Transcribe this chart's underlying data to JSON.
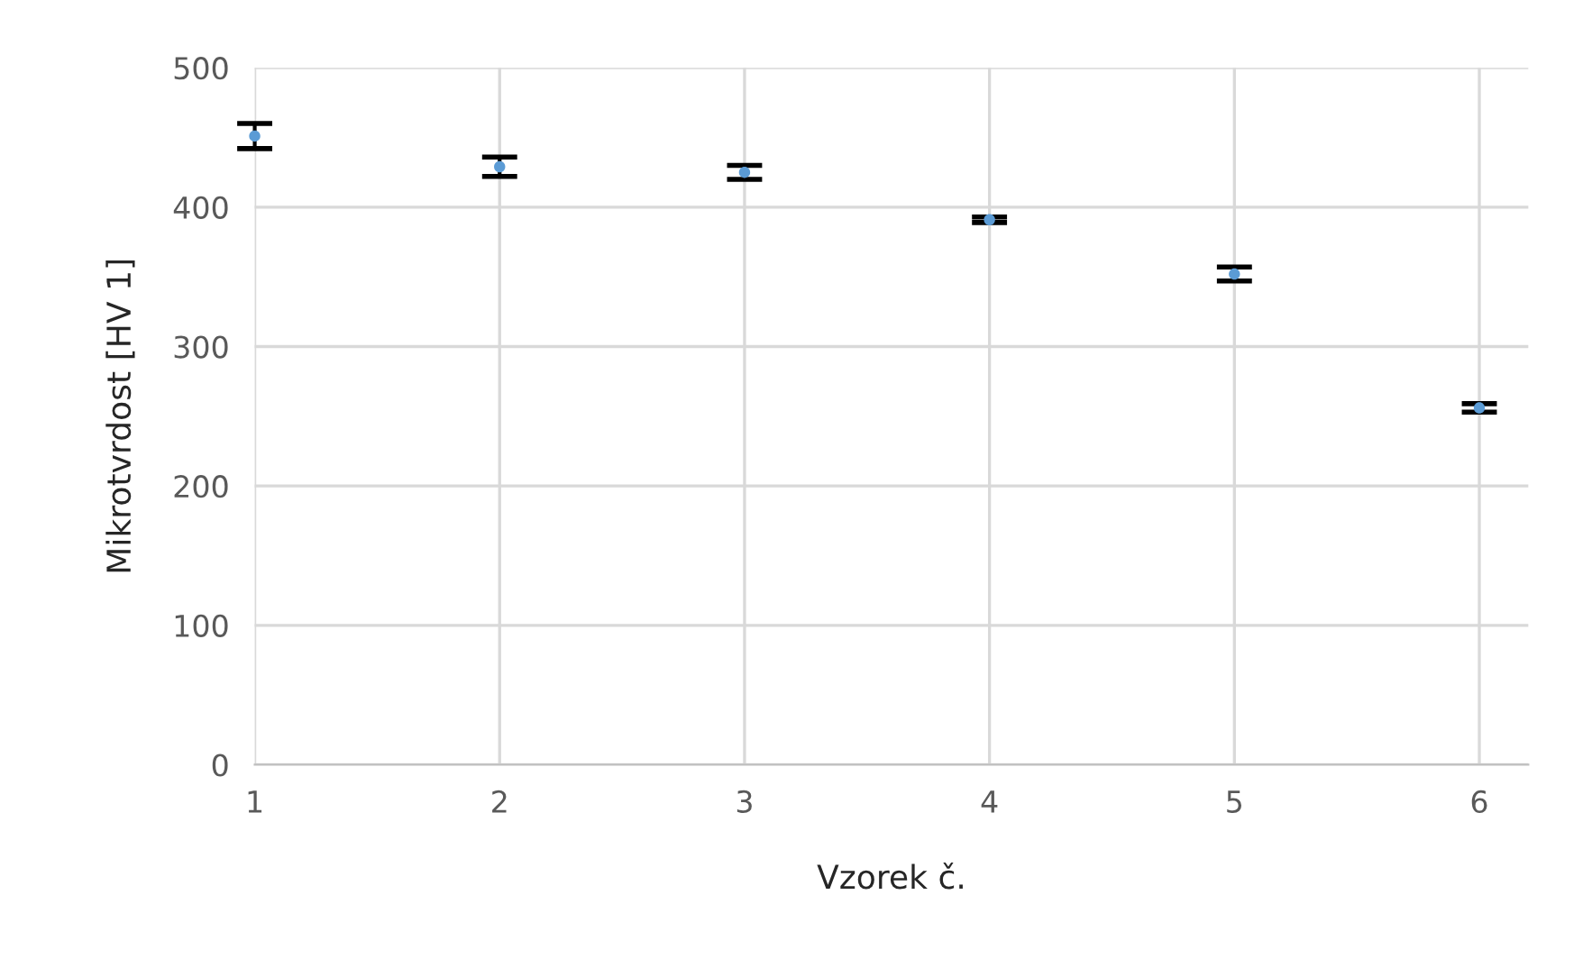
{
  "chart_data": {
    "type": "scatter",
    "xlabel": "Vzorek č.",
    "ylabel": "Mikrotvrdost [HV 1]",
    "x": [
      1,
      2,
      3,
      4,
      5,
      6
    ],
    "series": [
      {
        "color": "#5b9bd5",
        "values": [
          451,
          429,
          425,
          391,
          352,
          256
        ],
        "errors": [
          9,
          7,
          5,
          2,
          5,
          3
        ]
      }
    ],
    "xlim": [
      1,
      6.2
    ],
    "xticks": [
      1,
      2,
      3,
      4,
      5,
      6
    ],
    "ylim": [
      0,
      500
    ],
    "yticks": [
      0,
      100,
      200,
      300,
      400,
      500
    ],
    "grid": true,
    "marker": "circle",
    "legend": false
  }
}
